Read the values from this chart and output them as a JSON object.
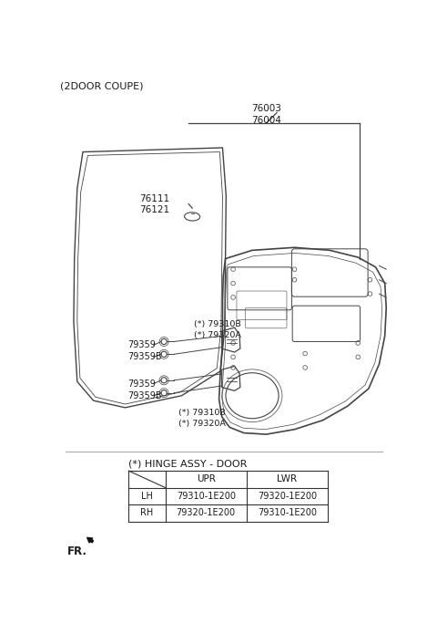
{
  "title": "(2DOOR COUPE)",
  "bg_color": "#ffffff",
  "text_color": "#1a1a1a",
  "line_color": "#444444",
  "label_76003_76004": "76003\n76004",
  "label_76111_76121": "76111\n76121",
  "label_79310B_upper": "(*) 79310B\n(*) 79320A",
  "label_79359_upper": "79359",
  "label_79359B_upper": "79359B",
  "label_79359_lower": "79359",
  "label_79359B_lower": "79359B",
  "label_79310B_lower": "(*) 79310B\n(*) 79320A",
  "hinge_title": "(*) HINGE ASSY - DOOR",
  "table_headers": [
    "",
    "UPR",
    "LWR"
  ],
  "table_rows": [
    [
      "LH",
      "79310-1E200",
      "79320-1E200"
    ],
    [
      "RH",
      "79320-1E200",
      "79310-1E200"
    ]
  ],
  "fr_label": "FR."
}
